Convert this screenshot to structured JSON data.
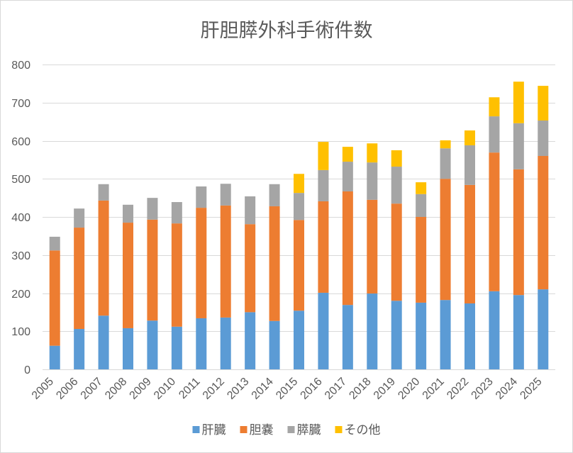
{
  "chart_data": {
    "type": "bar",
    "stacked": true,
    "title": "肝胆膵外科手術件数",
    "categories": [
      "2005",
      "2006",
      "2007",
      "2008",
      "2009",
      "2010",
      "2011",
      "2012",
      "2013",
      "2014",
      "2015",
      "2016",
      "2017",
      "2018",
      "2019",
      "2020",
      "2021",
      "2022",
      "2023",
      "2024",
      "2025"
    ],
    "series": [
      {
        "name": "肝臓",
        "color": "#5B9BD5",
        "values": [
          62,
          106,
          141,
          108,
          128,
          112,
          134,
          136,
          150,
          127,
          154,
          201,
          169,
          199,
          180,
          175,
          182,
          173,
          205,
          195,
          210
        ]
      },
      {
        "name": "胆嚢",
        "color": "#ED7D31",
        "values": [
          250,
          266,
          302,
          277,
          265,
          271,
          290,
          294,
          231,
          301,
          238,
          240,
          298,
          246,
          255,
          225,
          318,
          311,
          364,
          330,
          350
        ]
      },
      {
        "name": "膵臓",
        "color": "#A5A5A5",
        "values": [
          36,
          50,
          43,
          47,
          57,
          56,
          56,
          57,
          73,
          58,
          71,
          82,
          78,
          98,
          97,
          60,
          80,
          104,
          95,
          121,
          93
        ]
      },
      {
        "name": "その他",
        "color": "#FFC000",
        "values": [
          0,
          0,
          0,
          0,
          0,
          0,
          0,
          0,
          0,
          0,
          50,
          74,
          39,
          50,
          43,
          31,
          21,
          39,
          50,
          109,
          91
        ]
      }
    ],
    "ylim": [
      0,
      800
    ],
    "yticks": [
      0,
      100,
      200,
      300,
      400,
      500,
      600,
      700,
      800
    ],
    "grid": true,
    "legend_position": "bottom"
  }
}
